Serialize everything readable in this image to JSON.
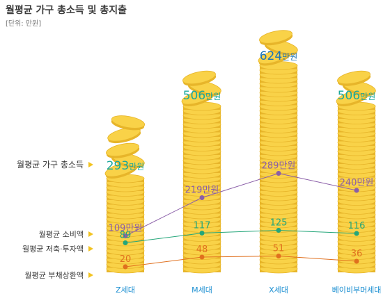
{
  "title": "월평균 가구 총소득 및 총지출",
  "unit": "[단위: 만원]",
  "colors": {
    "total": "#1aa79b",
    "total_top": "#1a73b6",
    "consumption": "#8a5ea8",
    "saving": "#24a67a",
    "debt": "#e0701e",
    "coin": "#f9d248",
    "coin_edge": "#e7b52a",
    "arrow": "#f2c320",
    "category": "#1a8ed1"
  },
  "chart_data": {
    "type": "line",
    "categories": [
      "Z세대",
      "M세대",
      "X세대",
      "베이비부머세대"
    ],
    "total_income": {
      "name": "월평균 가구 총소득",
      "values": [
        293,
        506,
        624,
        506
      ],
      "labels": [
        "293만원",
        "506만원",
        "624만원",
        "506만원"
      ]
    },
    "series": [
      {
        "name": "월평균 소비액",
        "values": [
          109,
          219,
          289,
          240
        ],
        "labels": [
          "109만원",
          "219만원",
          "289만원",
          "240만원"
        ]
      },
      {
        "name": "월평균 저축·투자액",
        "values": [
          89,
          117,
          125,
          116
        ],
        "labels": [
          "89",
          "117",
          "125",
          "116"
        ]
      },
      {
        "name": "월평균 부채상환액",
        "values": [
          20,
          48,
          51,
          36
        ],
        "labels": [
          "20",
          "48",
          "51",
          "36"
        ]
      }
    ]
  }
}
